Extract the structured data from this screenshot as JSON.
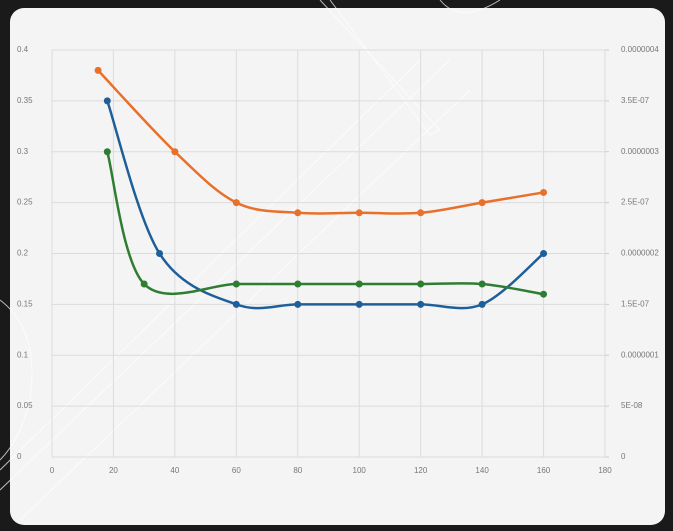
{
  "chart_data": {
    "type": "line",
    "xlim": [
      0,
      180
    ],
    "xticks": [
      0,
      20,
      40,
      60,
      80,
      100,
      120,
      140,
      160,
      180
    ],
    "ylim": [
      0,
      0.4
    ],
    "yticks": [
      0,
      0.05,
      0.1,
      0.15,
      0.2,
      0.25,
      0.3,
      0.35,
      0.4
    ],
    "y2lim": [
      0,
      4e-07
    ],
    "y2ticks": [
      0,
      {
        "value": 5e-08,
        "label": "5E-08"
      },
      {
        "value": 1e-07,
        "label": "0.0000001"
      },
      {
        "value": 1.5e-07,
        "label": "1.5E-07"
      },
      {
        "value": 2e-07,
        "label": "0.0000002"
      },
      {
        "value": 2.5e-07,
        "label": "2.5E-07"
      },
      {
        "value": 3e-07,
        "label": "0.0000003"
      },
      {
        "value": 3.5e-07,
        "label": "3.5E-07"
      },
      {
        "value": 4e-07,
        "label": "0.0000004"
      }
    ],
    "grid": true,
    "smooth": true,
    "series": [
      {
        "color": "#e8702a",
        "x": [
          15,
          40,
          60,
          80,
          100,
          120,
          140,
          160
        ],
        "values": [
          0.38,
          0.3,
          0.25,
          0.24,
          0.24,
          0.24,
          0.25,
          0.26
        ]
      },
      {
        "color": "#1f5f99",
        "x": [
          18,
          35,
          60,
          80,
          100,
          120,
          140,
          160
        ],
        "values": [
          0.35,
          0.2,
          0.15,
          0.15,
          0.15,
          0.15,
          0.15,
          0.2
        ]
      },
      {
        "color": "#2e7d32",
        "x": [
          18,
          30,
          60,
          80,
          100,
          120,
          140,
          160
        ],
        "values": [
          0.3,
          0.17,
          0.17,
          0.17,
          0.17,
          0.17,
          0.17,
          0.16
        ]
      }
    ]
  }
}
